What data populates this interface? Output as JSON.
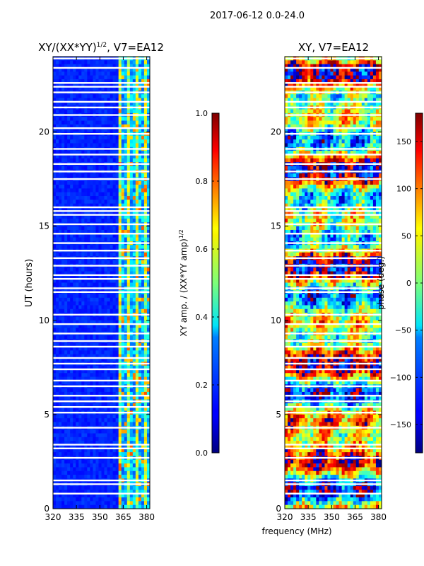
{
  "chart_data": {
    "type": "heatmap",
    "suptitle": "2017-06-12 0.0-24.0",
    "x_axis": {
      "label": "frequency (MHz)",
      "range": [
        320,
        382
      ],
      "ticks": [
        320,
        335,
        350,
        365,
        380
      ]
    },
    "y_axis": {
      "label": "UT (hours)",
      "range": [
        0,
        24
      ],
      "ticks": [
        0,
        5,
        10,
        15,
        20
      ]
    },
    "panels": [
      {
        "title_prefix": "XY/(XX*YY)",
        "title_sup": "1/2",
        "title_suffix": ", V7=EA12",
        "colorbar": {
          "label": "XY amp. / (XX*YY amp)",
          "label_sup": "1/2",
          "range": [
            0.0,
            1.0
          ],
          "ticks": [
            "0.0",
            "0.2",
            "0.4",
            "0.6",
            "0.8",
            "1.0"
          ],
          "tick_values": [
            0.0,
            0.2,
            0.4,
            0.6,
            0.8,
            1.0
          ]
        }
      },
      {
        "title": "XY, V7=EA12",
        "colorbar": {
          "label": "phase (deg.)",
          "range": [
            -180,
            180
          ],
          "ticks": [
            "−150",
            "−100",
            "−50",
            "0",
            "50",
            "100",
            "150"
          ],
          "tick_values": [
            -150,
            -100,
            -50,
            0,
            50,
            100,
            150
          ]
        }
      }
    ],
    "flagged_ut_hours": [
      0.8,
      1.3,
      1.5,
      2.7,
      3.2,
      3.4,
      4.3,
      5.1,
      5.4,
      5.7,
      6.0,
      6.5,
      6.8,
      7.4,
      7.7,
      8.0,
      8.6,
      8.9,
      9.3,
      9.8,
      10.3,
      11.5,
      11.7,
      12.2,
      12.4,
      12.9,
      13.3,
      13.7,
      14.1,
      14.6,
      15.1,
      15.6,
      15.8,
      16.0,
      17.5,
      17.9,
      18.3,
      18.8,
      19.1,
      19.9,
      20.2,
      20.9,
      21.3,
      21.6,
      22.1,
      22.4,
      22.6,
      23.4,
      23.9
    ],
    "rfi_band_mhz": [
      362,
      382
    ]
  }
}
